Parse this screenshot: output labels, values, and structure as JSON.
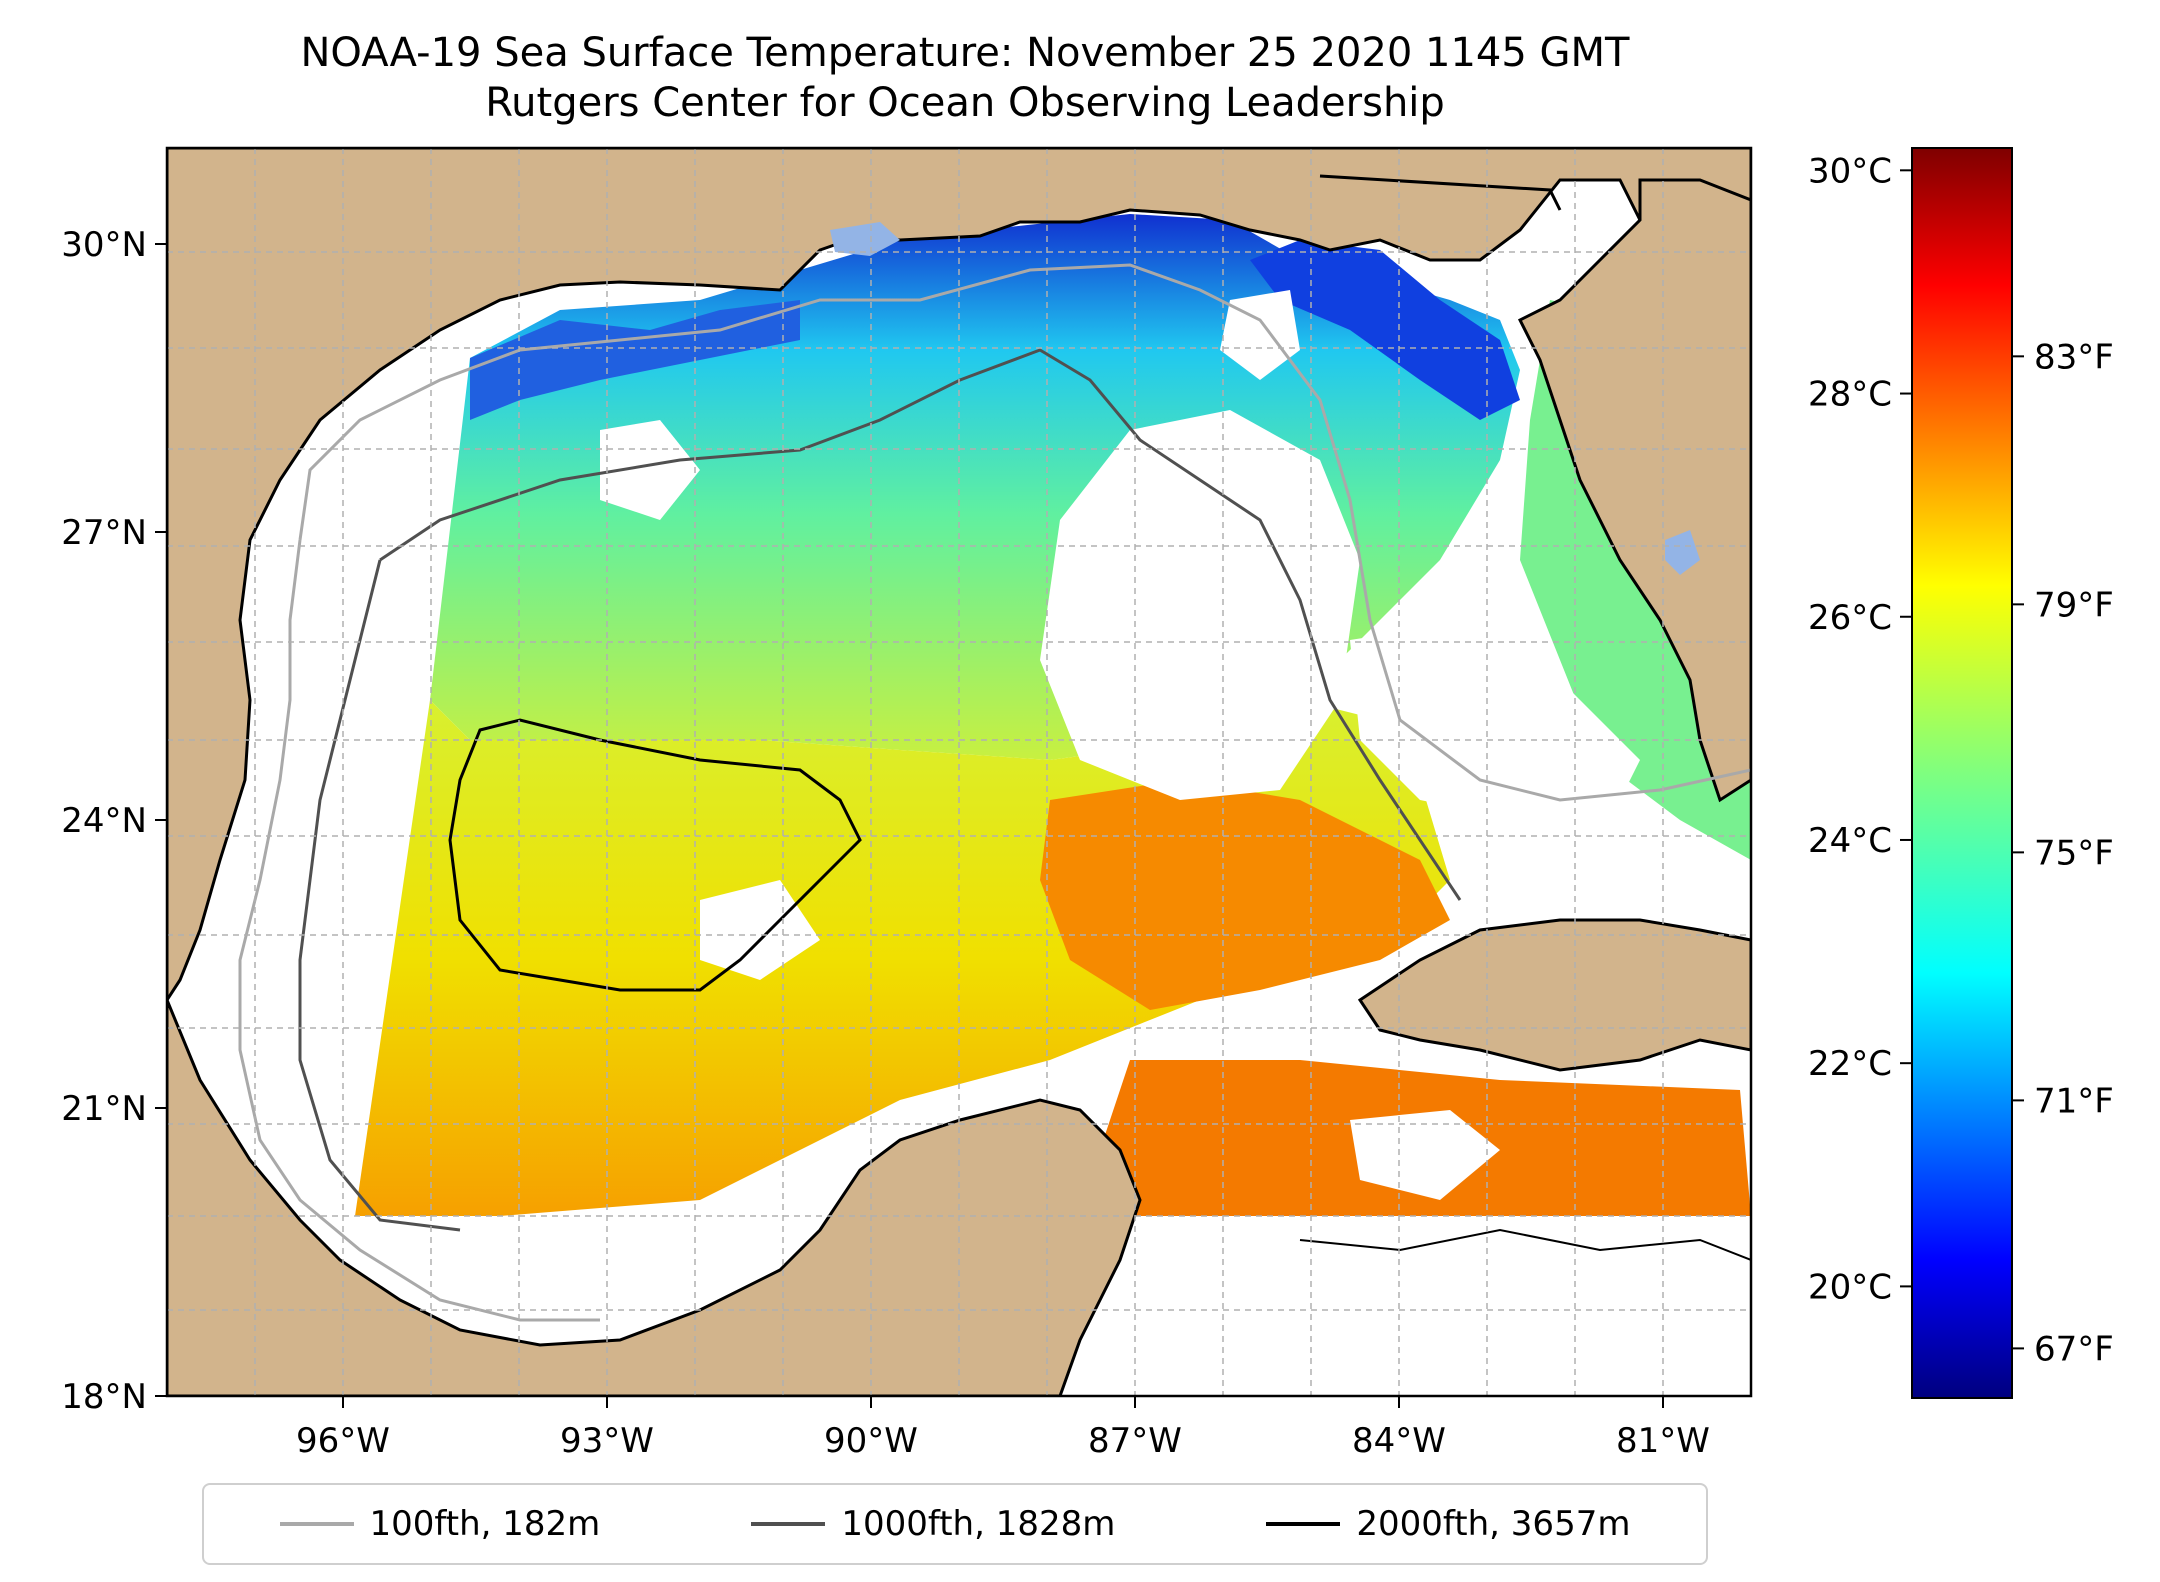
{
  "title": {
    "line1": "NOAA-19 Sea Surface Temperature: November 25 2020 1145 GMT",
    "line2": "Rutgers Center for Ocean Observing Leadership"
  },
  "map": {
    "lon_range": [
      -98,
      -80
    ],
    "lat_range": [
      18,
      31
    ],
    "lon_ticks": [
      {
        "value": -96,
        "label": "96°W"
      },
      {
        "value": -93,
        "label": "93°W"
      },
      {
        "value": -90,
        "label": "90°W"
      },
      {
        "value": -87,
        "label": "87°W"
      },
      {
        "value": -84,
        "label": "84°W"
      },
      {
        "value": -81,
        "label": "81°W"
      }
    ],
    "lat_ticks": [
      {
        "value": 18,
        "label": "18°N"
      },
      {
        "value": 21,
        "label": "21°N"
      },
      {
        "value": 24,
        "label": "24°N"
      },
      {
        "value": 27,
        "label": "27°N"
      },
      {
        "value": 30,
        "label": "30°N"
      }
    ],
    "colors": {
      "land": "#d2b48c",
      "inland_water": "#93b4e6",
      "contour_100": "#a9a9a9",
      "contour_1000": "#505050",
      "contour_2000": "#000000"
    }
  },
  "colorbar": {
    "celsius_range": [
      19,
      30.2
    ],
    "celsius_ticks": [
      {
        "value": 30,
        "label": "30°C"
      },
      {
        "value": 28,
        "label": "28°C"
      },
      {
        "value": 26,
        "label": "26°C"
      },
      {
        "value": 24,
        "label": "24°C"
      },
      {
        "value": 22,
        "label": "22°C"
      },
      {
        "value": 20,
        "label": "20°C"
      }
    ],
    "fahrenheit_ticks": [
      {
        "value": 83,
        "label": "83°F"
      },
      {
        "value": 79,
        "label": "79°F"
      },
      {
        "value": 75,
        "label": "75°F"
      },
      {
        "value": 71,
        "label": "71°F"
      },
      {
        "value": 67,
        "label": "67°F"
      }
    ]
  },
  "legend": {
    "items": [
      {
        "label": "100fth, 182m",
        "color": "#a9a9a9"
      },
      {
        "label": "1000fth, 1828m",
        "color": "#505050"
      },
      {
        "label": "2000fth, 3657m",
        "color": "#000000"
      }
    ]
  }
}
